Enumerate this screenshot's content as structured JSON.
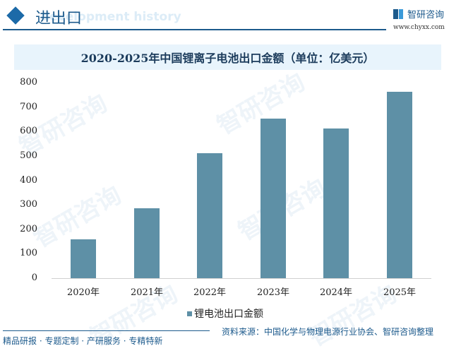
{
  "header": {
    "section_title": "进出口",
    "ghost_text": "development history",
    "logo_name": "智研咨询",
    "logo_url": "www.chyxx.com"
  },
  "chart_title": "2020-2025年中国锂离子电池出口金额（单位：亿美元）",
  "y_ticks": [
    "800",
    "700",
    "600",
    "500",
    "400",
    "300",
    "200",
    "100",
    "0"
  ],
  "legend": {
    "label": "锂电池出口金额",
    "color": "#5e90a6"
  },
  "footer": {
    "left": "精品研报 · 专题定制 · 产研服务 · 专精特新",
    "right": "资料来源：中国化学与物理电源行业协会、智研咨询整理"
  },
  "watermark": "智研咨询",
  "chart_data": {
    "type": "bar",
    "title": "2020-2025年中国锂离子电池出口金额（单位：亿美元）",
    "categories": [
      "2020年",
      "2021年",
      "2022年",
      "2023年",
      "2024年",
      "2025年"
    ],
    "series": [
      {
        "name": "锂电池出口金额",
        "values": [
          159,
          286,
          511,
          653,
          613,
          763
        ],
        "color": "#5e90a6"
      }
    ],
    "xlabel": "",
    "ylabel": "亿美元",
    "ylim": [
      0,
      800
    ],
    "yticks": [
      0,
      100,
      200,
      300,
      400,
      500,
      600,
      700,
      800
    ],
    "grid": false,
    "legend_position": "bottom"
  }
}
